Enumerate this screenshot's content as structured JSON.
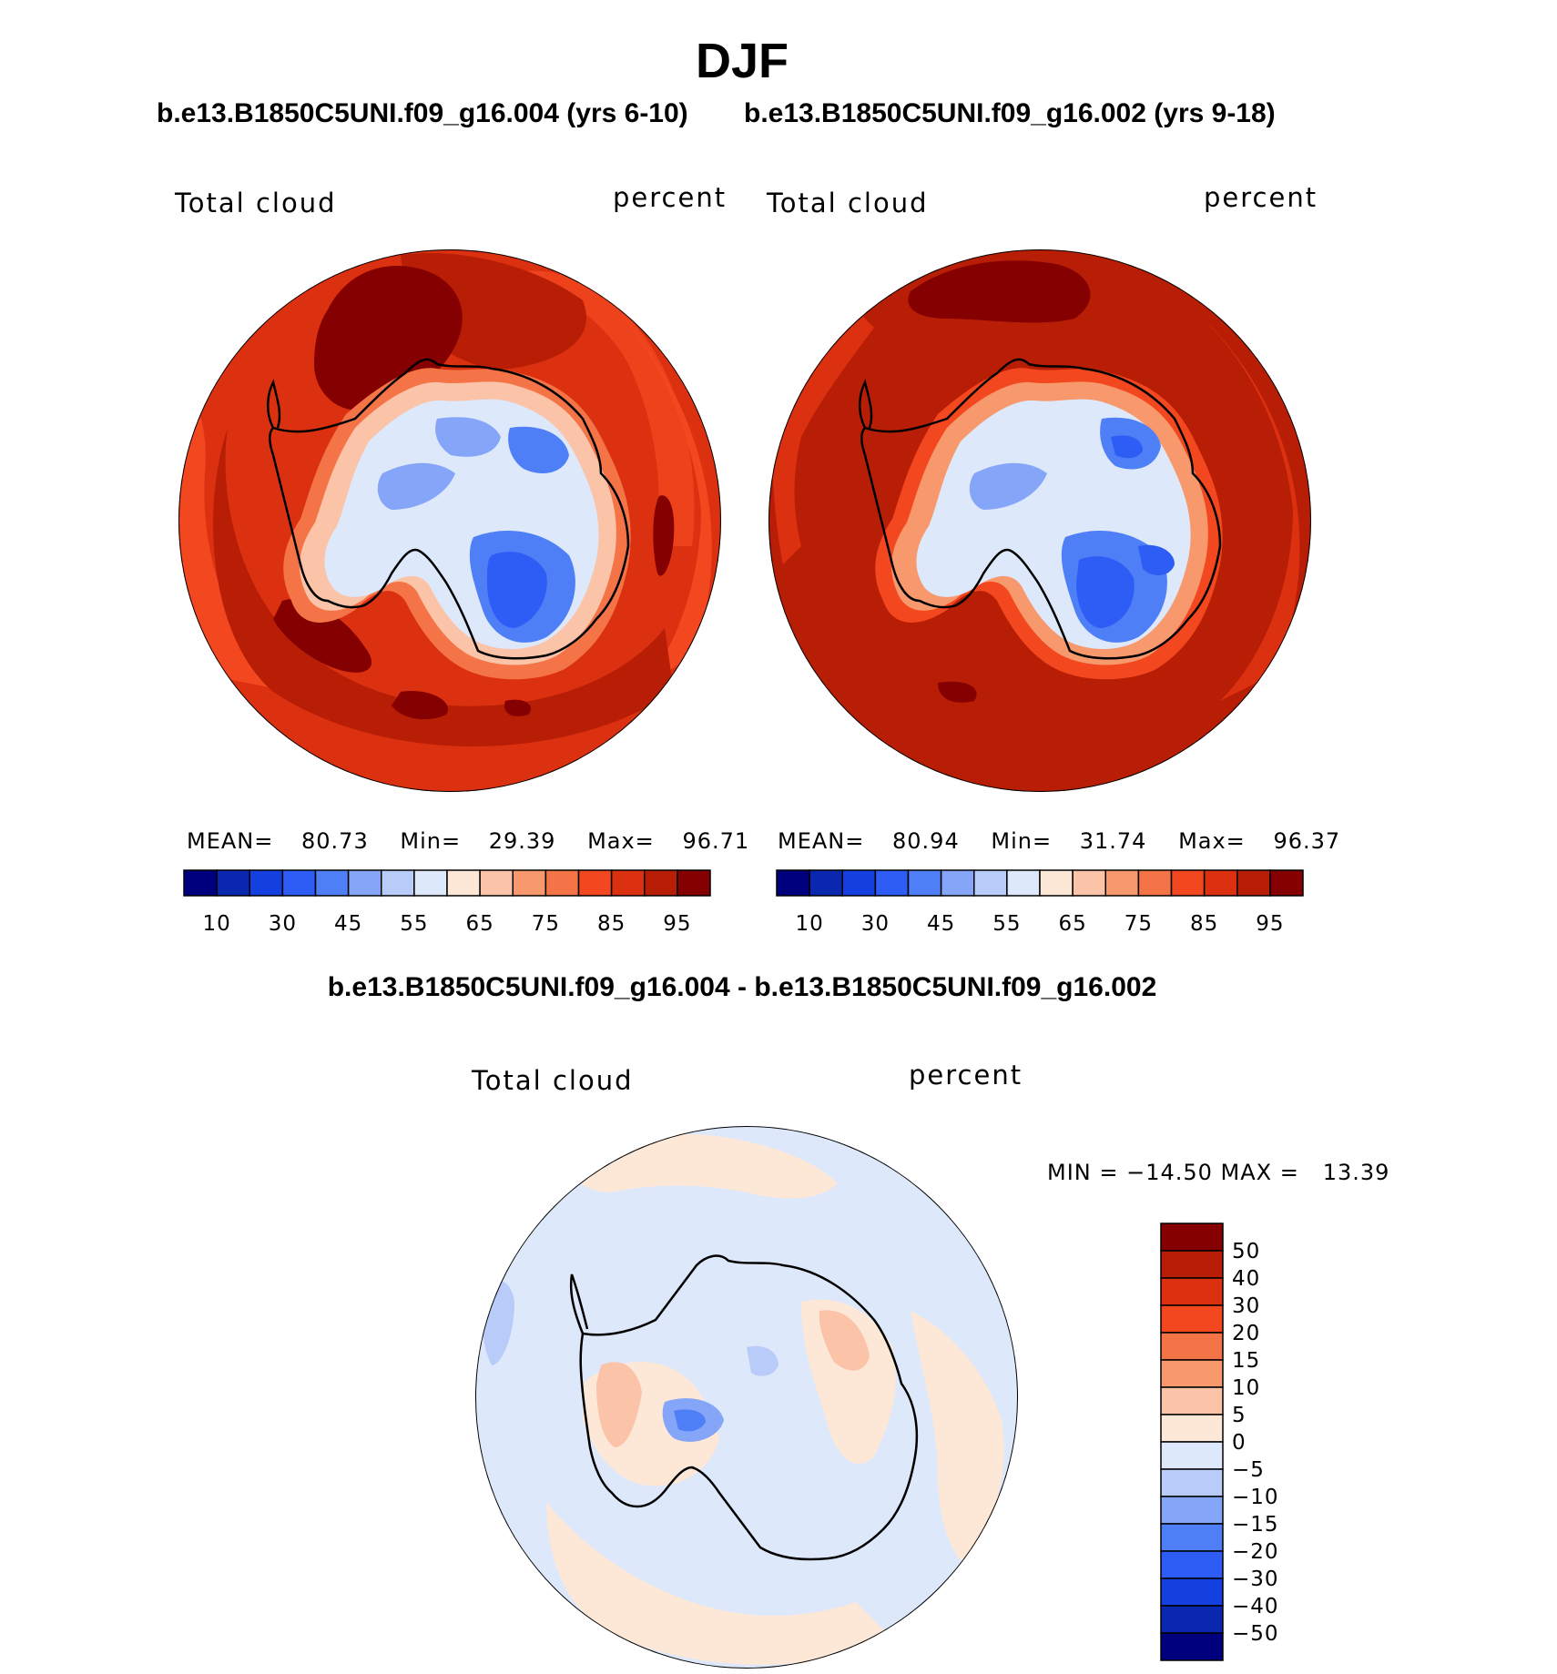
{
  "header": {
    "season": "DJF",
    "case1_title": "b.e13.B1850C5UNI.f09_g16.004 (yrs 6-10)",
    "case2_title": "b.e13.B1850C5UNI.f09_g16.002 (yrs 9-18)",
    "diff_title": "b.e13.B1850C5UNI.f09_g16.004 - b.e13.B1850C5UNI.f09_g16.002"
  },
  "colors": {
    "main_scale": [
      "#00007f",
      "#0a27b0",
      "#1540e0",
      "#2e5df5",
      "#4f7ff7",
      "#85a6f8",
      "#b9ccf9",
      "#dde8fb",
      "#fde7d7",
      "#fbc3a7",
      "#f7996c",
      "#f47447",
      "#f2471f",
      "#dc3110",
      "#b81e06",
      "#850000"
    ],
    "diff_scale": [
      "#00007f",
      "#0a27b0",
      "#1540e0",
      "#2e5df5",
      "#4f7ff7",
      "#85a6f8",
      "#b9ccf9",
      "#dde8fb",
      "#fde7d7",
      "#fbc3a7",
      "#f7996c",
      "#f47447",
      "#f2471f",
      "#dc3110",
      "#b81e06",
      "#850000"
    ]
  },
  "chart_data": [
    {
      "type": "heatmap",
      "projection": "south-polar-stereographic",
      "left_label": "Total cloud",
      "right_label": "percent",
      "stats": {
        "mean_label": "MEAN=",
        "mean": "80.73",
        "min_label": "Min=",
        "min": "29.39",
        "max_label": "Max=",
        "max": "96.71"
      },
      "colorbar_levels": [
        10,
        20,
        30,
        40,
        45,
        50,
        55,
        60,
        65,
        70,
        75,
        80,
        85,
        90,
        95
      ],
      "colorbar_tick_labels": [
        "10",
        "30",
        "45",
        "55",
        "65",
        "75",
        "85",
        "95"
      ]
    },
    {
      "type": "heatmap",
      "projection": "south-polar-stereographic",
      "left_label": "Total cloud",
      "right_label": "percent",
      "stats": {
        "mean_label": "MEAN=",
        "mean": "80.94",
        "min_label": "Min=",
        "min": "31.74",
        "max_label": "Max=",
        "max": "96.37"
      },
      "colorbar_levels": [
        10,
        20,
        30,
        40,
        45,
        50,
        55,
        60,
        65,
        70,
        75,
        80,
        85,
        90,
        95
      ],
      "colorbar_tick_labels": [
        "10",
        "30",
        "45",
        "55",
        "65",
        "75",
        "85",
        "95"
      ]
    },
    {
      "type": "heatmap",
      "projection": "south-polar-stereographic",
      "left_label": "Total cloud",
      "right_label": "percent",
      "stats_text": "MIN = −14.50 MAX =   13.39",
      "colorbar_levels": [
        -50,
        -40,
        -30,
        -20,
        -15,
        -10,
        -5,
        0,
        5,
        10,
        15,
        20,
        30,
        40,
        50
      ],
      "colorbar_tick_labels": [
        "50",
        "40",
        "30",
        "20",
        "15",
        "10",
        "5",
        "0",
        "−5",
        "−10",
        "−15",
        "−20",
        "−30",
        "−40",
        "−50"
      ]
    }
  ]
}
